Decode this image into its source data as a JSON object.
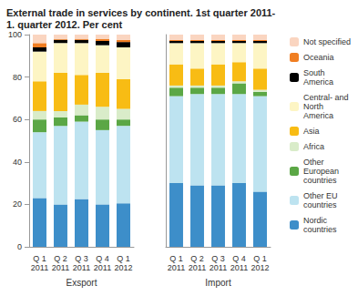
{
  "chart_data": [
    {
      "type": "bar",
      "stacked": true,
      "title": "External trade in services by continent. 1st quarter 2011-\n1. quarter 2012. Per cent",
      "xlabel": "Exsport",
      "categories": [
        "Q 1\n2011",
        "Q 2\n2011",
        "Q 3\n2011",
        "Q 4\n2011",
        "Q 1\n2012"
      ],
      "ylim": [
        0,
        100
      ],
      "yticks": [
        0,
        20,
        40,
        60,
        80,
        100
      ],
      "grid": false,
      "legend": "right",
      "series": [
        {
          "name": "Nordic countries",
          "color": "#3d8ec9",
          "values": [
            23,
            20,
            22.5,
            20,
            20.5
          ]
        },
        {
          "name": "Other EU countries",
          "color": "#bde3f0",
          "values": [
            31,
            37,
            36.5,
            35,
            36.5
          ]
        },
        {
          "name": "Other European countries",
          "color": "#5ba745",
          "values": [
            6,
            4,
            3,
            5,
            3
          ]
        },
        {
          "name": "Africa",
          "color": "#d9ecc9",
          "values": [
            4,
            3,
            5,
            6,
            5
          ]
        },
        {
          "name": "Asia",
          "color": "#f8bc14",
          "values": [
            14,
            18,
            14,
            16,
            14
          ]
        },
        {
          "name": "Central- and North America",
          "color": "#fdf5c4",
          "values": [
            14,
            14,
            15,
            13,
            15
          ]
        },
        {
          "name": "South America",
          "color": "#000000",
          "values": [
            2,
            1.5,
            1.5,
            2,
            2.5
          ]
        },
        {
          "name": "Oceania",
          "color": "#f07e22",
          "values": [
            2,
            0.5,
            0.5,
            1,
            1
          ]
        },
        {
          "name": "Not specified",
          "color": "#fad5c0",
          "values": [
            4,
            2,
            2,
            2,
            2.5
          ]
        }
      ]
    },
    {
      "type": "bar",
      "stacked": true,
      "xlabel": "Import",
      "categories": [
        "Q 1\n2011",
        "Q 2\n2011",
        "Q 3\n2011",
        "Q 4\n2011",
        "Q 1\n2012"
      ],
      "ylim": [
        0,
        100
      ],
      "yticks": [
        0,
        20,
        40,
        60,
        80,
        100
      ],
      "grid": false,
      "tick_labels": "x",
      "series": [
        {
          "name": "Nordic countries",
          "color": "#3d8ec9",
          "values": [
            30,
            29,
            29,
            30,
            26
          ]
        },
        {
          "name": "Other EU countries",
          "color": "#bde3f0",
          "values": [
            41,
            43,
            43,
            42,
            45
          ]
        },
        {
          "name": "Other European countries",
          "color": "#5ba745",
          "values": [
            4,
            3,
            3,
            5,
            2
          ]
        },
        {
          "name": "Africa",
          "color": "#d9ecc9",
          "values": [
            1,
            1,
            1,
            1,
            1
          ]
        },
        {
          "name": "Asia",
          "color": "#f8bc14",
          "values": [
            10,
            8,
            10,
            9,
            10
          ]
        },
        {
          "name": "Central- and North America",
          "color": "#fdf5c4",
          "values": [
            10,
            12,
            10,
            9,
            12
          ]
        },
        {
          "name": "South America",
          "color": "#000000",
          "values": [
            1,
            1,
            1,
            1,
            1
          ]
        },
        {
          "name": "Oceania",
          "color": "#f07e22",
          "values": [
            0.5,
            0.5,
            0.5,
            0.5,
            0.5
          ]
        },
        {
          "name": "Not specified",
          "color": "#fad5c0",
          "values": [
            2.5,
            2.5,
            2.5,
            2.5,
            2.5
          ]
        }
      ]
    }
  ]
}
